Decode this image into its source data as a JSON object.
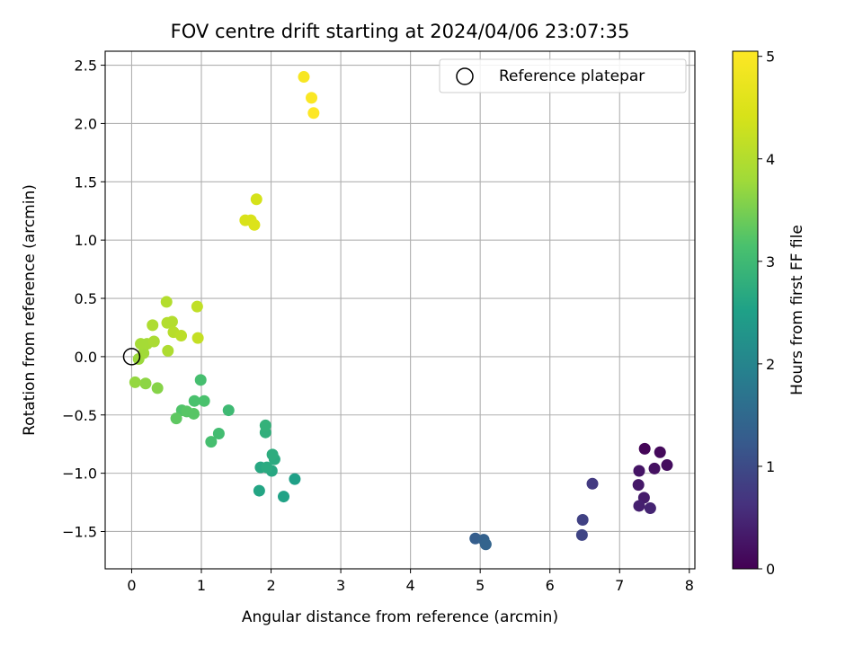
{
  "chart_data": {
    "type": "scatter",
    "title": "FOV centre drift starting at 2024/04/06 23:07:35",
    "xlabel": "Angular distance from reference (arcmin)",
    "ylabel": "Rotation from reference (arcmin)",
    "xlim": [
      -0.38,
      8.08
    ],
    "ylim": [
      -1.82,
      2.62
    ],
    "x_ticks": [
      0,
      1,
      2,
      3,
      4,
      5,
      6,
      7,
      8
    ],
    "y_ticks": [
      -1.5,
      -1.0,
      -0.5,
      0.0,
      0.5,
      1.0,
      1.5,
      2.0,
      2.5
    ],
    "y_tick_labels": [
      "−1.5",
      "−1.0",
      "−0.5",
      "0.0",
      "0.5",
      "1.0",
      "1.5",
      "2.0",
      "2.5"
    ],
    "grid": true,
    "colormap": "viridis",
    "colorbar": {
      "label": "Hours from first FF file",
      "min": 0,
      "max": 5.05,
      "ticks": [
        0,
        1,
        2,
        3,
        4,
        5
      ]
    },
    "legend": {
      "position": "top-right",
      "entries": [
        {
          "label": "Reference platepar",
          "marker": "open-circle"
        }
      ]
    },
    "reference_point": {
      "x": 0,
      "y": 0
    },
    "points": [
      {
        "x": 7.36,
        "y": -0.79,
        "c": 0.05
      },
      {
        "x": 7.58,
        "y": -0.82,
        "c": 0.1
      },
      {
        "x": 7.68,
        "y": -0.93,
        "c": 0.15
      },
      {
        "x": 7.5,
        "y": -0.96,
        "c": 0.2
      },
      {
        "x": 7.28,
        "y": -0.98,
        "c": 0.25
      },
      {
        "x": 7.27,
        "y": -1.1,
        "c": 0.3
      },
      {
        "x": 7.35,
        "y": -1.21,
        "c": 0.35
      },
      {
        "x": 7.28,
        "y": -1.28,
        "c": 0.4
      },
      {
        "x": 7.44,
        "y": -1.3,
        "c": 0.45
      },
      {
        "x": 6.61,
        "y": -1.09,
        "c": 0.75
      },
      {
        "x": 6.47,
        "y": -1.4,
        "c": 0.85
      },
      {
        "x": 6.46,
        "y": -1.53,
        "c": 0.9
      },
      {
        "x": 4.93,
        "y": -1.56,
        "c": 1.3
      },
      {
        "x": 5.05,
        "y": -1.57,
        "c": 1.35
      },
      {
        "x": 5.08,
        "y": -1.61,
        "c": 1.4
      },
      {
        "x": 2.34,
        "y": -1.05,
        "c": 2.5
      },
      {
        "x": 2.18,
        "y": -1.2,
        "c": 2.55
      },
      {
        "x": 1.83,
        "y": -1.15,
        "c": 2.6
      },
      {
        "x": 1.85,
        "y": -0.95,
        "c": 2.65
      },
      {
        "x": 2.01,
        "y": -0.98,
        "c": 2.65
      },
      {
        "x": 1.94,
        "y": -0.95,
        "c": 2.7
      },
      {
        "x": 2.05,
        "y": -0.88,
        "c": 2.7
      },
      {
        "x": 2.02,
        "y": -0.84,
        "c": 2.75
      },
      {
        "x": 1.92,
        "y": -0.65,
        "c": 2.8
      },
      {
        "x": 1.92,
        "y": -0.59,
        "c": 2.85
      },
      {
        "x": 1.39,
        "y": -0.46,
        "c": 3.0
      },
      {
        "x": 1.25,
        "y": -0.66,
        "c": 3.05
      },
      {
        "x": 1.14,
        "y": -0.73,
        "c": 3.1
      },
      {
        "x": 0.99,
        "y": -0.2,
        "c": 3.1
      },
      {
        "x": 1.04,
        "y": -0.38,
        "c": 3.15
      },
      {
        "x": 0.9,
        "y": -0.38,
        "c": 3.15
      },
      {
        "x": 0.72,
        "y": -0.46,
        "c": 3.2
      },
      {
        "x": 0.79,
        "y": -0.47,
        "c": 3.25
      },
      {
        "x": 0.89,
        "y": -0.49,
        "c": 3.25
      },
      {
        "x": 0.64,
        "y": -0.53,
        "c": 3.3
      },
      {
        "x": 0.37,
        "y": -0.27,
        "c": 3.6
      },
      {
        "x": 0.2,
        "y": -0.23,
        "c": 3.65
      },
      {
        "x": 0.05,
        "y": -0.22,
        "c": 3.7
      },
      {
        "x": 0.1,
        "y": -0.02,
        "c": 3.75
      },
      {
        "x": 0.17,
        "y": 0.03,
        "c": 3.8
      },
      {
        "x": 0.13,
        "y": 0.11,
        "c": 3.85
      },
      {
        "x": 0.22,
        "y": 0.11,
        "c": 3.85
      },
      {
        "x": 0.32,
        "y": 0.13,
        "c": 3.9
      },
      {
        "x": 0.52,
        "y": 0.05,
        "c": 3.95
      },
      {
        "x": 0.3,
        "y": 0.27,
        "c": 3.95
      },
      {
        "x": 0.51,
        "y": 0.29,
        "c": 4.0
      },
      {
        "x": 0.58,
        "y": 0.3,
        "c": 4.0
      },
      {
        "x": 0.5,
        "y": 0.47,
        "c": 4.0
      },
      {
        "x": 0.6,
        "y": 0.21,
        "c": 4.05
      },
      {
        "x": 0.71,
        "y": 0.18,
        "c": 4.1
      },
      {
        "x": 0.94,
        "y": 0.43,
        "c": 4.15
      },
      {
        "x": 0.95,
        "y": 0.16,
        "c": 4.2
      },
      {
        "x": 1.79,
        "y": 1.35,
        "c": 4.4
      },
      {
        "x": 1.63,
        "y": 1.17,
        "c": 4.45
      },
      {
        "x": 1.71,
        "y": 1.17,
        "c": 4.45
      },
      {
        "x": 1.76,
        "y": 1.13,
        "c": 4.5
      },
      {
        "x": 2.47,
        "y": 2.4,
        "c": 4.95
      },
      {
        "x": 2.58,
        "y": 2.22,
        "c": 5.0
      },
      {
        "x": 2.61,
        "y": 2.09,
        "c": 5.05
      }
    ]
  }
}
